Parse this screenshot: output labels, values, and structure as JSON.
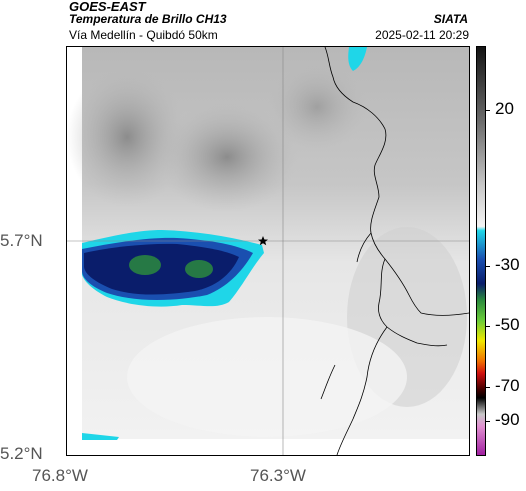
{
  "header": {
    "title": "GOES-EAST",
    "subtitle": "Temperatura de Brillo CH13",
    "route": "Vía Medellín - Quibdó 50km",
    "organization": "SIATA",
    "datetime": "2025-02-11 20:29"
  },
  "axes": {
    "y_ticks": [
      "5.7°N",
      "5.2°N"
    ],
    "x_ticks": [
      "76.8°W",
      "76.3°W"
    ]
  },
  "colorbar": {
    "ticks": [
      "20",
      "-30",
      "-50",
      "-70",
      "-90"
    ],
    "colors": {
      "warm_dark": "#2a2a2a",
      "warm_light": "#f2f2f2",
      "cyan": "#1fd6e8",
      "blue": "#1a4fb0",
      "navy": "#0a1d6b",
      "green": "#2b8a3e",
      "yellow": "#f0e800",
      "red": "#d01010",
      "black": "#000000",
      "pink": "#e090d0",
      "magenta": "#a020a0"
    }
  },
  "map": {
    "marker": "star-marker",
    "colors": {
      "cloud_light": "#f0f0f0",
      "cloud_gray": "#a8a8a8",
      "cold_cloud_edge": "#1fd6e8",
      "cold_cloud_core": "#0a1d6b",
      "coldest": "#2b8a3e",
      "border_line": "#000000"
    }
  }
}
